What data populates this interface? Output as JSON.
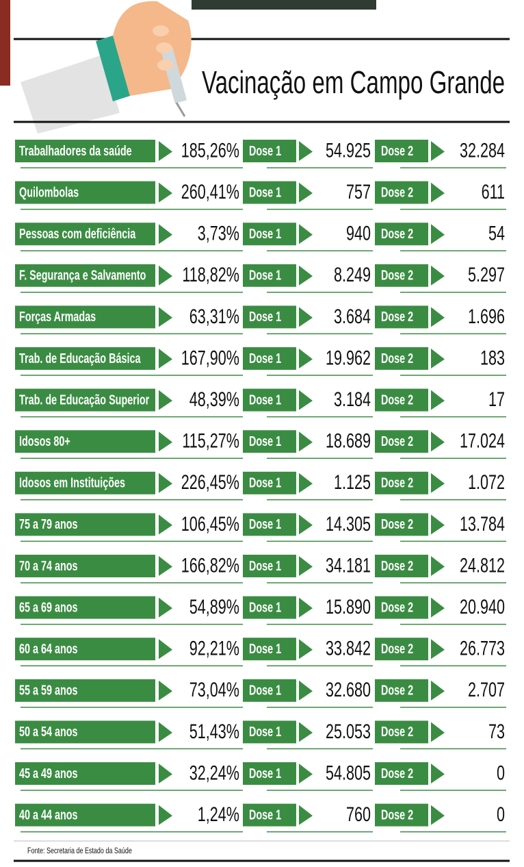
{
  "title": "Vacinação em Campo Grande",
  "dose1_label": "Dose 1",
  "dose2_label": "Dose 2",
  "rows": [
    {
      "group": "Trabalhadores  da saúde",
      "percent": "185,26%",
      "dose1": "54.925",
      "dose2": "32.284"
    },
    {
      "group": "Quilombolas",
      "percent": "260,41%",
      "dose1": "757",
      "dose2": "611"
    },
    {
      "group": "Pessoas com deficiência",
      "percent": "3,73%",
      "dose1": "940",
      "dose2": "54"
    },
    {
      "group": "F. Segurança e Salvamento",
      "percent": "118,82%",
      "dose1": "8.249",
      "dose2": "5.297"
    },
    {
      "group": "Forças Armadas",
      "percent": "63,31%",
      "dose1": "3.684",
      "dose2": "1.696"
    },
    {
      "group": "Trab. de Educação Básica",
      "percent": "167,90%",
      "dose1": "19.962",
      "dose2": "183"
    },
    {
      "group": "Trab. de Educação Superior",
      "percent": "48,39%",
      "dose1": "3.184",
      "dose2": "17"
    },
    {
      "group": "Idosos 80+",
      "percent": "115,27%",
      "dose1": "18.689",
      "dose2": "17.024"
    },
    {
      "group": "Idosos em Instituições",
      "percent": "226,45%",
      "dose1": "1.125",
      "dose2": "1.072"
    },
    {
      "group": "75 a 79 anos",
      "percent": "106,45%",
      "dose1": "14.305",
      "dose2": "13.784"
    },
    {
      "group": "70 a 74 anos",
      "percent": "166,82%",
      "dose1": "34.181",
      "dose2": "24.812"
    },
    {
      "group": "65 a 69 anos",
      "percent": "54,89%",
      "dose1": "15.890",
      "dose2": "20.940"
    },
    {
      "group": "60 a 64 anos",
      "percent": "92,21%",
      "dose1": "33.842",
      "dose2": "26.773"
    },
    {
      "group": "55 a 59 anos",
      "percent": "73,04%",
      "dose1": "32.680",
      "dose2": "2.707"
    },
    {
      "group": "50 a 54 anos",
      "percent": "51,43%",
      "dose1": "25.053",
      "dose2": "73"
    },
    {
      "group": "45 a 49 anos",
      "percent": "32,24%",
      "dose1": "54.805",
      "dose2": "0"
    },
    {
      "group": "40 a 44 anos",
      "percent": "1,24%",
      "dose1": "760",
      "dose2": "0"
    }
  ],
  "source": "Fonte: Secretaria de Estado da Saúde"
}
